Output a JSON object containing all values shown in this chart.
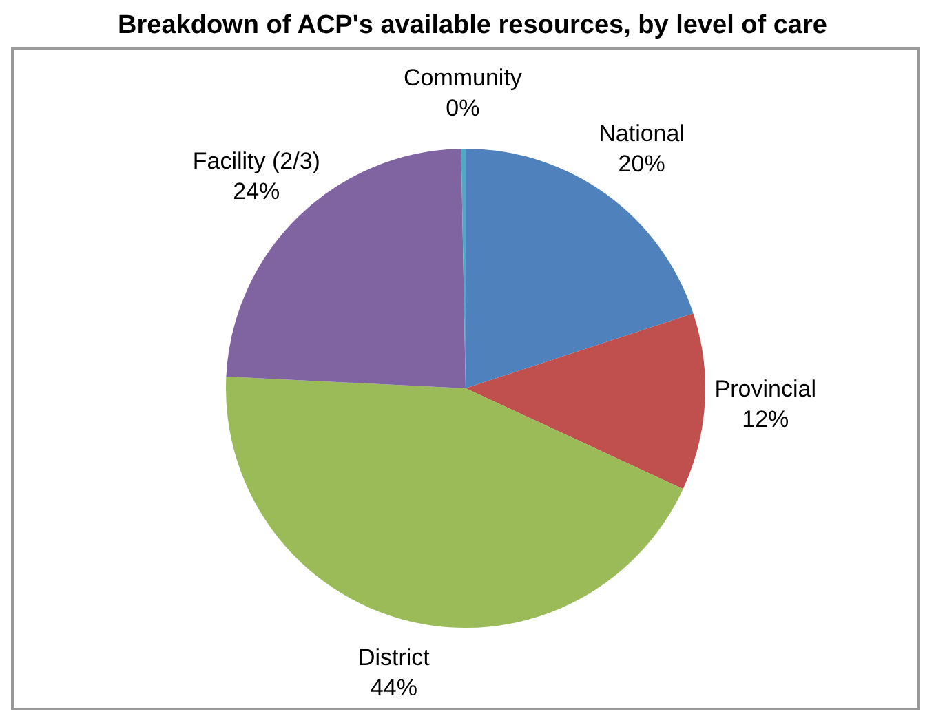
{
  "chart_data": {
    "type": "pie",
    "title": "Breakdown of ACP's available resources, by level of care",
    "categories": [
      "National",
      "Provincial",
      "District",
      "Facility (2/3)",
      "Community"
    ],
    "values": [
      20,
      12,
      44,
      24,
      0.3
    ],
    "value_labels": [
      "20%",
      "12%",
      "44%",
      "24%",
      "0%"
    ],
    "colors": [
      "#4f81bd",
      "#c0504d",
      "#9bbb59",
      "#8064a2",
      "#4bacc6"
    ],
    "legend": false
  }
}
